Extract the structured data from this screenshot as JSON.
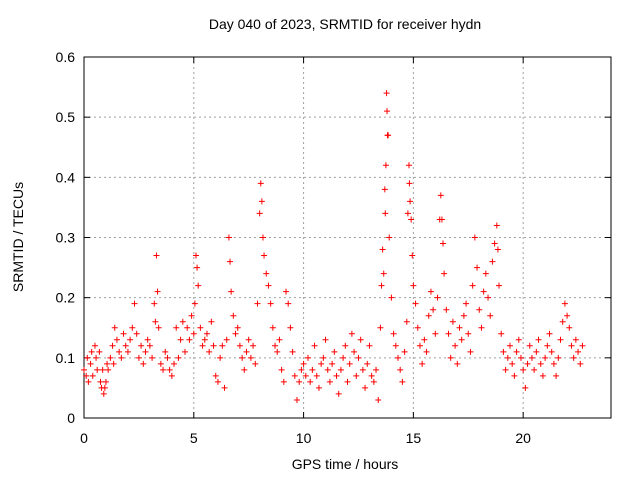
{
  "chart_data": {
    "type": "scatter",
    "title": "Day 040 of 2023, SRMTID for receiver hydn",
    "xlabel": "GPS time / hours",
    "ylabel": "SRMTID / TECUs",
    "xlim": [
      0,
      24
    ],
    "ylim": [
      0,
      0.6
    ],
    "xticks": [
      0,
      5,
      10,
      15,
      20
    ],
    "xtick_labels": [
      "0",
      "5",
      "10",
      "15",
      "20"
    ],
    "yticks": [
      0,
      0.1,
      0.2,
      0.3,
      0.4,
      0.5,
      0.6
    ],
    "ytick_labels": [
      "0",
      "0.1",
      "0.2",
      "0.3",
      "0.4",
      "0.5",
      "0.6"
    ],
    "grid": true,
    "marker": "+",
    "color": "#ff0000",
    "series": [
      {
        "name": "SRMTID",
        "points": [
          [
            0.0,
            0.08
          ],
          [
            0.1,
            0.07
          ],
          [
            0.15,
            0.1
          ],
          [
            0.2,
            0.06
          ],
          [
            0.3,
            0.09
          ],
          [
            0.35,
            0.11
          ],
          [
            0.4,
            0.07
          ],
          [
            0.5,
            0.12
          ],
          [
            0.55,
            0.1
          ],
          [
            0.6,
            0.08
          ],
          [
            0.7,
            0.11
          ],
          [
            0.75,
            0.06
          ],
          [
            0.8,
            0.05
          ],
          [
            0.85,
            0.08
          ],
          [
            0.9,
            0.04
          ],
          [
            0.95,
            0.05
          ],
          [
            1.0,
            0.06
          ],
          [
            1.05,
            0.09
          ],
          [
            1.1,
            0.08
          ],
          [
            1.2,
            0.1
          ],
          [
            1.3,
            0.12
          ],
          [
            1.35,
            0.09
          ],
          [
            1.4,
            0.15
          ],
          [
            1.5,
            0.13
          ],
          [
            1.6,
            0.11
          ],
          [
            1.7,
            0.1
          ],
          [
            1.8,
            0.14
          ],
          [
            1.9,
            0.12
          ],
          [
            2.0,
            0.11
          ],
          [
            2.1,
            0.13
          ],
          [
            2.2,
            0.15
          ],
          [
            2.3,
            0.19
          ],
          [
            2.4,
            0.14
          ],
          [
            2.5,
            0.1
          ],
          [
            2.6,
            0.12
          ],
          [
            2.7,
            0.09
          ],
          [
            2.8,
            0.11
          ],
          [
            2.9,
            0.13
          ],
          [
            3.0,
            0.12
          ],
          [
            3.1,
            0.1
          ],
          [
            3.2,
            0.19
          ],
          [
            3.25,
            0.16
          ],
          [
            3.3,
            0.27
          ],
          [
            3.35,
            0.21
          ],
          [
            3.4,
            0.15
          ],
          [
            3.5,
            0.09
          ],
          [
            3.6,
            0.08
          ],
          [
            3.7,
            0.11
          ],
          [
            3.8,
            0.1
          ],
          [
            3.9,
            0.08
          ],
          [
            4.0,
            0.07
          ],
          [
            4.1,
            0.09
          ],
          [
            4.2,
            0.15
          ],
          [
            4.3,
            0.1
          ],
          [
            4.4,
            0.13
          ],
          [
            4.5,
            0.16
          ],
          [
            4.6,
            0.11
          ],
          [
            4.7,
            0.15
          ],
          [
            4.8,
            0.13
          ],
          [
            4.9,
            0.17
          ],
          [
            5.0,
            0.14
          ],
          [
            5.05,
            0.19
          ],
          [
            5.1,
            0.27
          ],
          [
            5.15,
            0.25
          ],
          [
            5.2,
            0.22
          ],
          [
            5.3,
            0.15
          ],
          [
            5.4,
            0.12
          ],
          [
            5.5,
            0.13
          ],
          [
            5.6,
            0.14
          ],
          [
            5.7,
            0.11
          ],
          [
            5.8,
            0.16
          ],
          [
            5.9,
            0.12
          ],
          [
            6.0,
            0.07
          ],
          [
            6.1,
            0.06
          ],
          [
            6.2,
            0.1
          ],
          [
            6.3,
            0.12
          ],
          [
            6.4,
            0.05
          ],
          [
            6.5,
            0.13
          ],
          [
            6.6,
            0.3
          ],
          [
            6.65,
            0.26
          ],
          [
            6.7,
            0.21
          ],
          [
            6.8,
            0.17
          ],
          [
            6.9,
            0.14
          ],
          [
            7.0,
            0.15
          ],
          [
            7.1,
            0.12
          ],
          [
            7.2,
            0.1
          ],
          [
            7.3,
            0.08
          ],
          [
            7.4,
            0.11
          ],
          [
            7.5,
            0.13
          ],
          [
            7.6,
            0.1
          ],
          [
            7.7,
            0.12
          ],
          [
            7.8,
            0.09
          ],
          [
            7.9,
            0.19
          ],
          [
            8.0,
            0.34
          ],
          [
            8.05,
            0.39
          ],
          [
            8.1,
            0.36
          ],
          [
            8.15,
            0.3
          ],
          [
            8.2,
            0.27
          ],
          [
            8.3,
            0.24
          ],
          [
            8.4,
            0.22
          ],
          [
            8.5,
            0.19
          ],
          [
            8.6,
            0.15
          ],
          [
            8.7,
            0.12
          ],
          [
            8.8,
            0.11
          ],
          [
            8.9,
            0.13
          ],
          [
            9.0,
            0.08
          ],
          [
            9.1,
            0.06
          ],
          [
            9.2,
            0.21
          ],
          [
            9.3,
            0.19
          ],
          [
            9.4,
            0.15
          ],
          [
            9.5,
            0.11
          ],
          [
            9.6,
            0.07
          ],
          [
            9.7,
            0.03
          ],
          [
            9.8,
            0.06
          ],
          [
            9.9,
            0.08
          ],
          [
            10.0,
            0.09
          ],
          [
            10.1,
            0.07
          ],
          [
            10.2,
            0.1
          ],
          [
            10.3,
            0.06
          ],
          [
            10.4,
            0.08
          ],
          [
            10.5,
            0.12
          ],
          [
            10.6,
            0.07
          ],
          [
            10.7,
            0.05
          ],
          [
            10.8,
            0.09
          ],
          [
            10.9,
            0.1
          ],
          [
            11.0,
            0.13
          ],
          [
            11.1,
            0.08
          ],
          [
            11.2,
            0.06
          ],
          [
            11.3,
            0.09
          ],
          [
            11.4,
            0.11
          ],
          [
            11.5,
            0.07
          ],
          [
            11.6,
            0.04
          ],
          [
            11.7,
            0.08
          ],
          [
            11.8,
            0.1
          ],
          [
            11.9,
            0.12
          ],
          [
            12.0,
            0.06
          ],
          [
            12.1,
            0.09
          ],
          [
            12.2,
            0.14
          ],
          [
            12.3,
            0.11
          ],
          [
            12.4,
            0.07
          ],
          [
            12.5,
            0.1
          ],
          [
            12.6,
            0.13
          ],
          [
            12.7,
            0.08
          ],
          [
            12.8,
            0.05
          ],
          [
            12.9,
            0.09
          ],
          [
            13.0,
            0.12
          ],
          [
            13.1,
            0.07
          ],
          [
            13.2,
            0.06
          ],
          [
            13.3,
            0.08
          ],
          [
            13.4,
            0.03
          ],
          [
            13.5,
            0.15
          ],
          [
            13.55,
            0.22
          ],
          [
            13.6,
            0.28
          ],
          [
            13.65,
            0.24
          ],
          [
            13.7,
            0.38
          ],
          [
            13.72,
            0.34
          ],
          [
            13.75,
            0.42
          ],
          [
            13.78,
            0.54
          ],
          [
            13.8,
            0.51
          ],
          [
            13.82,
            0.47
          ],
          [
            13.85,
            0.47
          ],
          [
            13.9,
            0.3
          ],
          [
            14.0,
            0.2
          ],
          [
            14.1,
            0.14
          ],
          [
            14.2,
            0.12
          ],
          [
            14.3,
            0.1
          ],
          [
            14.4,
            0.08
          ],
          [
            14.5,
            0.06
          ],
          [
            14.6,
            0.11
          ],
          [
            14.7,
            0.16
          ],
          [
            14.75,
            0.34
          ],
          [
            14.8,
            0.42
          ],
          [
            14.82,
            0.39
          ],
          [
            14.85,
            0.36
          ],
          [
            14.9,
            0.33
          ],
          [
            14.95,
            0.27
          ],
          [
            15.0,
            0.22
          ],
          [
            15.1,
            0.19
          ],
          [
            15.2,
            0.15
          ],
          [
            15.3,
            0.12
          ],
          [
            15.4,
            0.09
          ],
          [
            15.5,
            0.13
          ],
          [
            15.6,
            0.11
          ],
          [
            15.7,
            0.17
          ],
          [
            15.8,
            0.21
          ],
          [
            15.9,
            0.18
          ],
          [
            16.0,
            0.14
          ],
          [
            16.1,
            0.2
          ],
          [
            16.2,
            0.33
          ],
          [
            16.25,
            0.37
          ],
          [
            16.3,
            0.33
          ],
          [
            16.35,
            0.29
          ],
          [
            16.4,
            0.24
          ],
          [
            16.5,
            0.18
          ],
          [
            16.6,
            0.14
          ],
          [
            16.7,
            0.1
          ],
          [
            16.8,
            0.16
          ],
          [
            16.9,
            0.12
          ],
          [
            17.0,
            0.09
          ],
          [
            17.1,
            0.15
          ],
          [
            17.2,
            0.13
          ],
          [
            17.3,
            0.17
          ],
          [
            17.4,
            0.19
          ],
          [
            17.5,
            0.14
          ],
          [
            17.6,
            0.11
          ],
          [
            17.7,
            0.22
          ],
          [
            17.8,
            0.3
          ],
          [
            17.9,
            0.25
          ],
          [
            18.0,
            0.18
          ],
          [
            18.1,
            0.15
          ],
          [
            18.2,
            0.21
          ],
          [
            18.3,
            0.24
          ],
          [
            18.4,
            0.2
          ],
          [
            18.5,
            0.17
          ],
          [
            18.6,
            0.26
          ],
          [
            18.7,
            0.29
          ],
          [
            18.8,
            0.32
          ],
          [
            18.85,
            0.28
          ],
          [
            18.9,
            0.22
          ],
          [
            19.0,
            0.14
          ],
          [
            19.1,
            0.11
          ],
          [
            19.2,
            0.08
          ],
          [
            19.3,
            0.1
          ],
          [
            19.4,
            0.12
          ],
          [
            19.5,
            0.09
          ],
          [
            19.6,
            0.07
          ],
          [
            19.7,
            0.11
          ],
          [
            19.8,
            0.13
          ],
          [
            19.9,
            0.1
          ],
          [
            20.0,
            0.08
          ],
          [
            20.1,
            0.05
          ],
          [
            20.2,
            0.09
          ],
          [
            20.3,
            0.12
          ],
          [
            20.4,
            0.1
          ],
          [
            20.5,
            0.08
          ],
          [
            20.6,
            0.11
          ],
          [
            20.7,
            0.13
          ],
          [
            20.8,
            0.09
          ],
          [
            20.9,
            0.07
          ],
          [
            21.0,
            0.1
          ],
          [
            21.1,
            0.12
          ],
          [
            21.2,
            0.14
          ],
          [
            21.3,
            0.11
          ],
          [
            21.4,
            0.09
          ],
          [
            21.5,
            0.07
          ],
          [
            21.6,
            0.1
          ],
          [
            21.7,
            0.13
          ],
          [
            21.8,
            0.16
          ],
          [
            21.9,
            0.19
          ],
          [
            22.0,
            0.17
          ],
          [
            22.1,
            0.15
          ],
          [
            22.2,
            0.12
          ],
          [
            22.3,
            0.1
          ],
          [
            22.4,
            0.13
          ],
          [
            22.5,
            0.11
          ],
          [
            22.6,
            0.09
          ],
          [
            22.7,
            0.12
          ]
        ]
      }
    ]
  }
}
